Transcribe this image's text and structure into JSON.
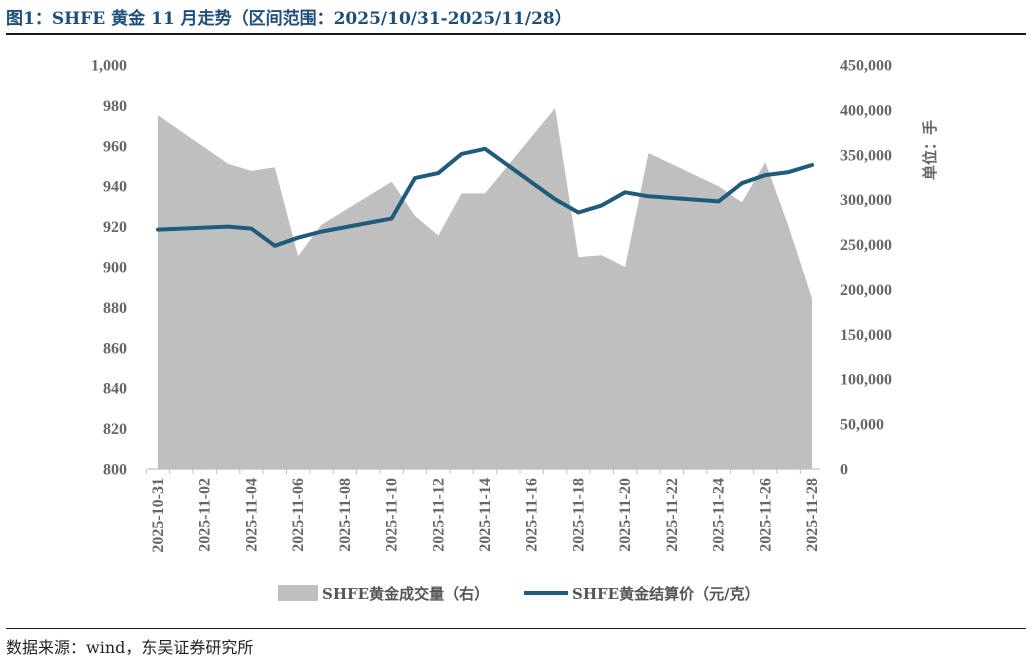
{
  "header": {
    "title": "图1：SHFE 黄金 11 月走势（区间范围：2025/10/31-2025/11/28）"
  },
  "footer": {
    "source": "数据来源：wind，东吴证券研究所"
  },
  "chart_data": {
    "type": "area+line",
    "title": "图1：SHFE 黄金 11 月走势（区间范围：2025/10/31-2025/11/28）",
    "x_tick_labels": [
      "2025-10-31",
      "2025-11-02",
      "2025-11-04",
      "2025-11-06",
      "2025-11-08",
      "2025-11-10",
      "2025-11-12",
      "2025-11-14",
      "2025-11-16",
      "2025-11-18",
      "2025-11-20",
      "2025-11-22",
      "2025-11-24",
      "2025-11-26",
      "2025-11-28"
    ],
    "y_left": {
      "ticks": [
        "1,000",
        "980",
        "960",
        "940",
        "920",
        "900",
        "880",
        "860",
        "840",
        "820",
        "800"
      ],
      "ylim": [
        800,
        1000
      ]
    },
    "y_right": {
      "label": "单位：手",
      "ticks": [
        "450,000",
        "400,000",
        "350,000",
        "300,000",
        "250,000",
        "200,000",
        "150,000",
        "100,000",
        "50,000",
        "0"
      ],
      "ylim": [
        0,
        450000
      ]
    },
    "volume_series": {
      "name": "SHFE黄金成交量（右）",
      "axis": "right",
      "color": "#bfbfbf",
      "x": [
        "2025-10-31",
        "2025-11-03",
        "2025-11-04",
        "2025-11-05",
        "2025-11-06",
        "2025-11-07",
        "2025-11-10",
        "2025-11-11",
        "2025-11-12",
        "2025-11-13",
        "2025-11-14",
        "2025-11-17",
        "2025-11-18",
        "2025-11-19",
        "2025-11-20",
        "2025-11-21",
        "2025-11-24",
        "2025-11-25",
        "2025-11-26",
        "2025-11-27",
        "2025-11-28"
      ],
      "values": [
        394000,
        340000,
        332000,
        336000,
        237000,
        272000,
        320000,
        282000,
        260000,
        307000,
        307000,
        402000,
        236000,
        238000,
        225000,
        352000,
        315000,
        297000,
        342000,
        270000,
        190000
      ]
    },
    "price_series": {
      "name": "SHFE黄金结算价（元/克）",
      "axis": "left",
      "color": "#1f5b7a",
      "x": [
        "2025-10-31",
        "2025-11-03",
        "2025-11-04",
        "2025-11-05",
        "2025-11-06",
        "2025-11-07",
        "2025-11-10",
        "2025-11-11",
        "2025-11-12",
        "2025-11-13",
        "2025-11-14",
        "2025-11-17",
        "2025-11-18",
        "2025-11-19",
        "2025-11-20",
        "2025-11-21",
        "2025-11-24",
        "2025-11-25",
        "2025-11-26",
        "2025-11-27",
        "2025-11-28"
      ],
      "values": [
        918.5,
        920.0,
        919.0,
        910.5,
        914.5,
        917.5,
        924.0,
        944.0,
        946.5,
        956.0,
        958.5,
        933.5,
        927.0,
        930.5,
        937.0,
        935.0,
        932.5,
        941.5,
        945.5,
        947.0,
        950.5
      ]
    },
    "legend": {
      "placement": "bottom-center"
    },
    "grid": false
  }
}
